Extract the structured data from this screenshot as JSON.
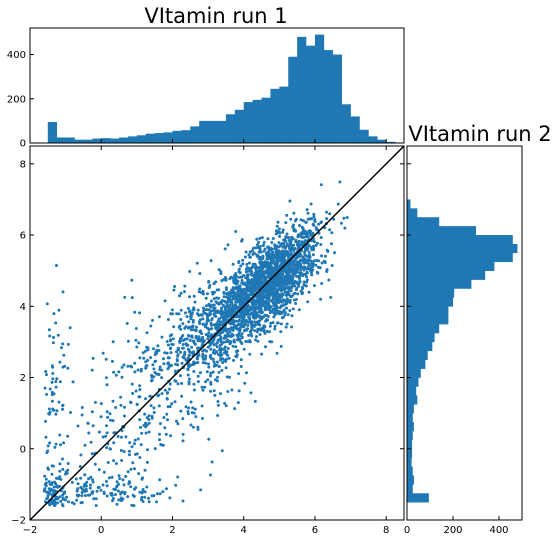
{
  "chart_data": [
    {
      "type": "bar",
      "panel": "top-histogram",
      "title": "VItamin run 1",
      "orientation": "vertical",
      "bin_start": -1.5,
      "bin_width": 0.25,
      "counts": [
        95,
        25,
        25,
        15,
        15,
        20,
        22,
        20,
        25,
        30,
        35,
        42,
        45,
        48,
        55,
        58,
        75,
        100,
        100,
        100,
        130,
        150,
        185,
        195,
        205,
        245,
        255,
        390,
        480,
        440,
        490,
        420,
        400,
        175,
        120,
        60,
        30,
        15,
        5
      ],
      "xlim": [
        -2,
        8.5
      ],
      "ylim": [
        0,
        520
      ],
      "x_ticks": [],
      "y_ticks": [
        "0",
        "200",
        "400"
      ],
      "y_tick_values": [
        0,
        200,
        400
      ]
    },
    {
      "type": "scatter",
      "panel": "main-scatter",
      "xlim": [
        -2,
        8.5
      ],
      "ylim": [
        -2,
        8.5
      ],
      "x_ticks": [
        "−2",
        "0",
        "2",
        "4",
        "6",
        "8"
      ],
      "x_tick_values": [
        -2,
        0,
        2,
        4,
        6,
        8
      ],
      "y_ticks": [
        "−2",
        "0",
        "2",
        "4",
        "6",
        "8"
      ],
      "y_tick_values": [
        -2,
        0,
        2,
        4,
        6,
        8
      ],
      "reference_line": {
        "from": [
          -2,
          -2
        ],
        "to": [
          8.5,
          8.5
        ],
        "color": "#000000"
      },
      "point_color": "#1f77b4",
      "clusters": [
        {
          "n": 1700,
          "x_mean": 4.8,
          "x_sd": 0.7,
          "y_mean": 4.7,
          "y_sd": 0.75
        },
        {
          "n": 700,
          "x_mean": 3.5,
          "x_sd": 0.9,
          "y_mean": 3.6,
          "y_sd": 1.0
        },
        {
          "n": 420,
          "x_mean": 1.8,
          "x_sd": 1.5,
          "y_mean": 1.8,
          "y_sd": 1.8
        },
        {
          "n": 160,
          "x_mean": 0.0,
          "x_sd": 1.2,
          "y_mean": -1.2,
          "y_sd": 0.25
        },
        {
          "n": 90,
          "x_mean": -1.3,
          "x_sd": 0.2,
          "y_mean": 1.0,
          "y_sd": 1.6
        },
        {
          "n": 60,
          "x_mean": -1.4,
          "x_sd": 0.15,
          "y_mean": -1.3,
          "y_sd": 0.2
        }
      ]
    },
    {
      "type": "bar",
      "panel": "right-histogram",
      "title": "VItamin run 2",
      "orientation": "horizontal",
      "bin_start": -1.5,
      "bin_width": 0.25,
      "counts": [
        95,
        25,
        30,
        25,
        20,
        22,
        22,
        25,
        30,
        25,
        30,
        45,
        40,
        50,
        60,
        80,
        90,
        110,
        120,
        140,
        180,
        180,
        200,
        205,
        280,
        340,
        380,
        460,
        480,
        460,
        300,
        140,
        45,
        15
      ],
      "xlim": [
        0,
        500
      ],
      "ylim": [
        -2,
        8.5
      ],
      "x_ticks": [
        "0",
        "200",
        "400"
      ],
      "x_tick_values": [
        0,
        200,
        400
      ],
      "y_ticks": []
    }
  ],
  "style": {
    "bar_color": "#1f77b4",
    "axis_color": "#000000"
  }
}
